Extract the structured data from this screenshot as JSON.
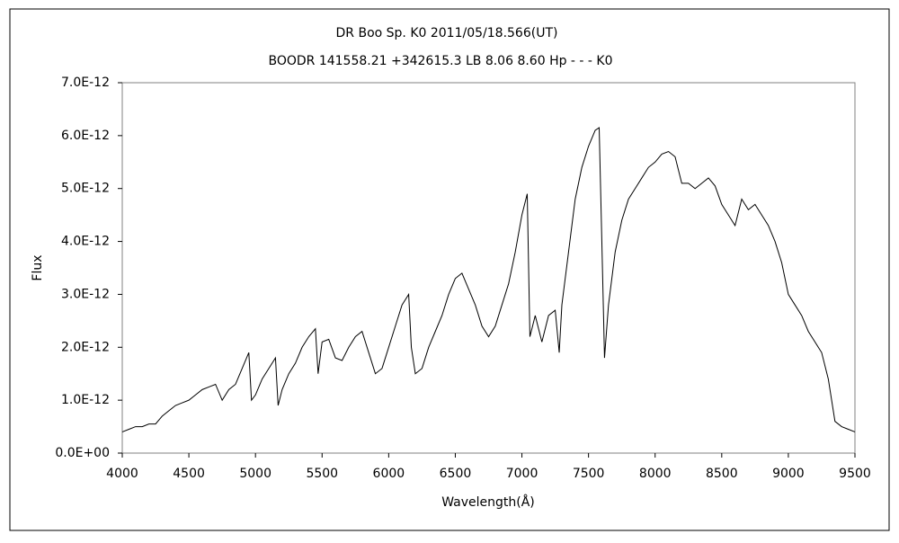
{
  "chart_data": {
    "type": "line",
    "title": "DR Boo     Sp. K0     2011/05/18.566(UT)",
    "subtitle": "BOODR 141558.21 +342615.3 LB 8.06 8.60 Hp - - - K0",
    "x_label": "Wavelength(Å)",
    "y_label": "Flux",
    "xlim": [
      4000,
      9500
    ],
    "xticks": [
      4000,
      4500,
      5000,
      5500,
      6000,
      6500,
      7000,
      7500,
      8000,
      8500,
      9000,
      9500
    ],
    "ylim": [
      0,
      7e-12
    ],
    "yticks": [
      {
        "value": 0,
        "label": "0.0E+00"
      },
      {
        "value": 1e-12,
        "label": "1.0E-12"
      },
      {
        "value": 2e-12,
        "label": "2.0E-12"
      },
      {
        "value": 3e-12,
        "label": "3.0E-12"
      },
      {
        "value": 4e-12,
        "label": "4.0E-12"
      },
      {
        "value": 5e-12,
        "label": "5.0E-12"
      },
      {
        "value": 6e-12,
        "label": "6.0E-12"
      },
      {
        "value": 7e-12,
        "label": "7.0E-12"
      }
    ],
    "grid": false,
    "series": [
      {
        "color": "#000000",
        "x": [
          4000,
          4050,
          4100,
          4150,
          4200,
          4250,
          4300,
          4350,
          4400,
          4450,
          4500,
          4550,
          4600,
          4650,
          4700,
          4750,
          4800,
          4850,
          4900,
          4950,
          4970,
          5000,
          5050,
          5100,
          5150,
          5170,
          5200,
          5250,
          5300,
          5350,
          5400,
          5450,
          5470,
          5500,
          5550,
          5600,
          5650,
          5700,
          5750,
          5800,
          5850,
          5900,
          5950,
          6000,
          6050,
          6100,
          6150,
          6170,
          6200,
          6250,
          6300,
          6350,
          6400,
          6450,
          6500,
          6550,
          6600,
          6650,
          6700,
          6750,
          6800,
          6850,
          6900,
          6950,
          7000,
          7040,
          7060,
          7100,
          7150,
          7200,
          7250,
          7280,
          7300,
          7350,
          7400,
          7450,
          7500,
          7550,
          7580,
          7600,
          7620,
          7650,
          7700,
          7750,
          7800,
          7850,
          7900,
          7950,
          8000,
          8050,
          8100,
          8150,
          8200,
          8250,
          8300,
          8350,
          8400,
          8450,
          8500,
          8550,
          8600,
          8650,
          8700,
          8750,
          8800,
          8850,
          8900,
          8950,
          9000,
          9050,
          9100,
          9150,
          9200,
          9250,
          9300,
          9350,
          9400,
          9450,
          9500
        ],
        "values": [
          4e-13,
          4.5e-13,
          5e-13,
          5e-13,
          5.5e-13,
          5.5e-13,
          7e-13,
          8e-13,
          9e-13,
          9.5e-13,
          1e-12,
          1.1e-12,
          1.2e-12,
          1.25e-12,
          1.3e-12,
          1e-12,
          1.2e-12,
          1.3e-12,
          1.6e-12,
          1.9e-12,
          1e-12,
          1.1e-12,
          1.4e-12,
          1.6e-12,
          1.8e-12,
          9e-13,
          1.2e-12,
          1.5e-12,
          1.7e-12,
          2e-12,
          2.2e-12,
          2.35e-12,
          1.5e-12,
          2.1e-12,
          2.15e-12,
          1.8e-12,
          1.75e-12,
          2e-12,
          2.2e-12,
          2.3e-12,
          1.9e-12,
          1.5e-12,
          1.6e-12,
          2e-12,
          2.4e-12,
          2.8e-12,
          3e-12,
          2e-12,
          1.5e-12,
          1.6e-12,
          2e-12,
          2.3e-12,
          2.6e-12,
          3e-12,
          3.3e-12,
          3.4e-12,
          3.1e-12,
          2.8e-12,
          2.4e-12,
          2.2e-12,
          2.4e-12,
          2.8e-12,
          3.2e-12,
          3.8e-12,
          4.5e-12,
          4.9e-12,
          2.2e-12,
          2.6e-12,
          2.1e-12,
          2.6e-12,
          2.7e-12,
          1.9e-12,
          2.8e-12,
          3.8e-12,
          4.8e-12,
          5.4e-12,
          5.8e-12,
          6.1e-12,
          6.15e-12,
          4e-12,
          1.8e-12,
          2.8e-12,
          3.8e-12,
          4.4e-12,
          4.8e-12,
          5e-12,
          5.2e-12,
          5.4e-12,
          5.5e-12,
          5.65e-12,
          5.7e-12,
          5.6e-12,
          5.1e-12,
          5.1e-12,
          5e-12,
          5.1e-12,
          5.2e-12,
          5.05e-12,
          4.7e-12,
          4.5e-12,
          4.3e-12,
          4.8e-12,
          4.6e-12,
          4.7e-12,
          4.5e-12,
          4.3e-12,
          4e-12,
          3.6e-12,
          3e-12,
          2.8e-12,
          2.6e-12,
          2.3e-12,
          2.1e-12,
          1.9e-12,
          1.4e-12,
          6e-13,
          5e-13,
          4.5e-13,
          4e-13
        ]
      }
    ]
  }
}
